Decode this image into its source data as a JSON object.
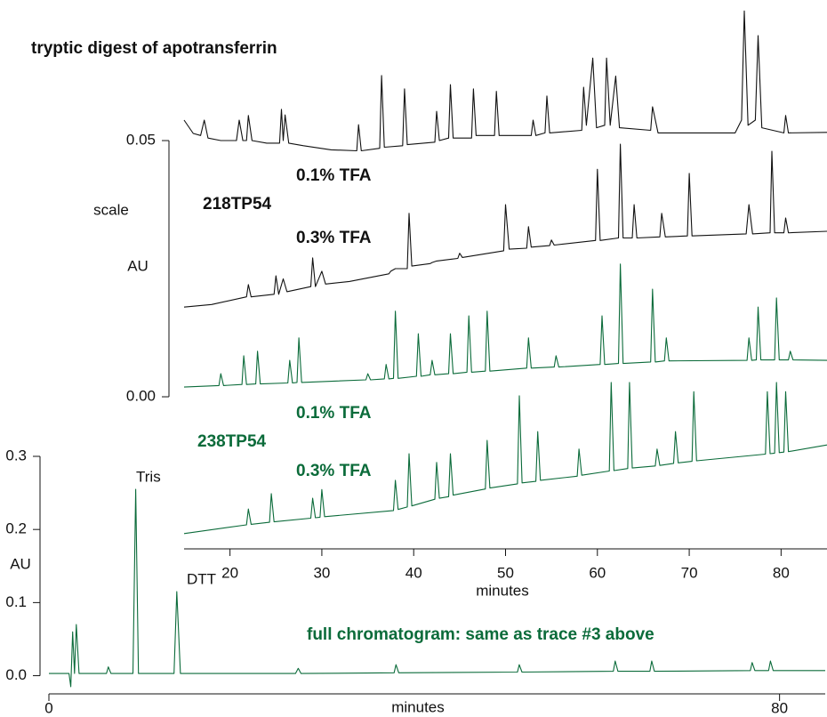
{
  "chart_data": [
    {
      "type": "line",
      "title": "tryptic digest of apotransferrin",
      "x_label": "minutes",
      "y_label": "scale",
      "y_unit": "AU",
      "xlim": [
        15,
        85
      ],
      "xticks": [
        20,
        30,
        40,
        50,
        60,
        70,
        80
      ],
      "ylim": [
        -0.0276,
        0.0757
      ],
      "yticks": [
        {
          "value": 0,
          "label": "0.00"
        },
        {
          "value": 0.05,
          "label": "0.05"
        }
      ],
      "annotations": [
        {
          "text": "0.1% TFA",
          "color": "#111111"
        },
        {
          "text": "218TP54",
          "color": "#111111"
        },
        {
          "text": "0.3% TFA",
          "color": "#111111"
        },
        {
          "text": "0.1% TFA",
          "color": "#0b6b3a"
        },
        {
          "text": "238TP54",
          "color": "#0b6b3a"
        },
        {
          "text": "0.3% TFA",
          "color": "#0b6b3a"
        }
      ],
      "series": [
        {
          "color": "#111111",
          "x": [
            15,
            16,
            16.8,
            17.2,
            17.6,
            19,
            20.7,
            21,
            21.4,
            21.8,
            22,
            22.4,
            24,
            25.4,
            25.6,
            25.8,
            26,
            26.4,
            28,
            31,
            33.8,
            34,
            34.3,
            36.3,
            36.5,
            36.8,
            38.8,
            39,
            39.3,
            42.3,
            42.5,
            42.8,
            43.8,
            44,
            44.3,
            46.3,
            46.5,
            46.8,
            48.8,
            49,
            49.3,
            52.8,
            53,
            53.3,
            54.3,
            54.5,
            54.8,
            58.3,
            58.5,
            58.8,
            59.5,
            59.9,
            60.8,
            61,
            61.4,
            62,
            62.4,
            65.8,
            66,
            66.6,
            70,
            75,
            75.7,
            76,
            76.4,
            77.2,
            77.5,
            77.9,
            80.3,
            80.5,
            80.8,
            85
          ],
          "values": [
            0.054,
            0.0514,
            0.051,
            0.054,
            0.0505,
            0.05,
            0.05,
            0.054,
            0.05,
            0.05,
            0.0549,
            0.05,
            0.0495,
            0.0495,
            0.0561,
            0.05,
            0.055,
            0.0495,
            0.049,
            0.0482,
            0.048,
            0.0531,
            0.048,
            0.0485,
            0.0627,
            0.0487,
            0.049,
            0.0601,
            0.0492,
            0.0497,
            0.0557,
            0.05,
            0.0505,
            0.0609,
            0.0505,
            0.0505,
            0.0601,
            0.051,
            0.051,
            0.0596,
            0.051,
            0.051,
            0.054,
            0.051,
            0.0515,
            0.0587,
            0.0515,
            0.052,
            0.0604,
            0.053,
            0.0661,
            0.0525,
            0.053,
            0.0661,
            0.053,
            0.0626,
            0.0525,
            0.052,
            0.0566,
            0.0515,
            0.0515,
            0.0515,
            0.054,
            0.0753,
            0.053,
            0.054,
            0.0705,
            0.0525,
            0.0515,
            0.0549,
            0.0515,
            0.0516
          ]
        },
        {
          "color": "#111111",
          "x": [
            15,
            18,
            21.8,
            22,
            22.3,
            24.8,
            25,
            25.3,
            25.8,
            26.2,
            28.8,
            29,
            29.3,
            30,
            30.4,
            33,
            37.3,
            37.5,
            38,
            39.3,
            39.5,
            39.8,
            41.8,
            42,
            42.5,
            44.8,
            45,
            45.3,
            49.8,
            50,
            50.4,
            52.3,
            52.5,
            52.8,
            54.8,
            55,
            55.3,
            59.8,
            60,
            60.3,
            62.3,
            62.5,
            62.8,
            63.8,
            64,
            64.3,
            66.8,
            67,
            67.4,
            69.8,
            70,
            70.3,
            76.2,
            76.5,
            76.9,
            78.8,
            79,
            79.3,
            80.3,
            80.5,
            80.8,
            85
          ],
          "values": [
            0.0175,
            0.018,
            0.0195,
            0.0219,
            0.0195,
            0.02,
            0.0236,
            0.02,
            0.023,
            0.0205,
            0.0215,
            0.0271,
            0.0215,
            0.0245,
            0.022,
            0.0225,
            0.024,
            0.0245,
            0.025,
            0.025,
            0.0358,
            0.0255,
            0.026,
            0.0262,
            0.0265,
            0.027,
            0.028,
            0.0272,
            0.0285,
            0.0375,
            0.0288,
            0.029,
            0.0332,
            0.0292,
            0.0295,
            0.0306,
            0.0296,
            0.0305,
            0.0444,
            0.0305,
            0.031,
            0.0493,
            0.031,
            0.031,
            0.0375,
            0.031,
            0.0312,
            0.0358,
            0.0312,
            0.0314,
            0.0436,
            0.0314,
            0.0318,
            0.0375,
            0.0318,
            0.032,
            0.0479,
            0.032,
            0.032,
            0.0349,
            0.032,
            0.0323
          ]
        },
        {
          "color": "#0b6b3a",
          "x": [
            15,
            18.8,
            19,
            19.3,
            21.3,
            21.5,
            21.8,
            22.8,
            23,
            23.3,
            26.3,
            26.5,
            26.8,
            27.3,
            27.5,
            27.8,
            34.8,
            35,
            35.3,
            36.8,
            37,
            37.3,
            37.8,
            38,
            38.3,
            40.3,
            40.5,
            40.8,
            41.8,
            42,
            42.3,
            43.8,
            44,
            44.3,
            45.8,
            46,
            46.3,
            47.8,
            48,
            48.3,
            52.3,
            52.5,
            52.8,
            55.3,
            55.5,
            55.8,
            60.3,
            60.5,
            60.8,
            62.3,
            62.5,
            62.8,
            65.8,
            66,
            66.3,
            67.3,
            67.5,
            67.8,
            76.3,
            76.5,
            76.8,
            77.3,
            77.5,
            77.8,
            79.3,
            79.5,
            79.8,
            80.8,
            81,
            81.3,
            85
          ],
          "values": [
            0.0019,
            0.0022,
            0.0045,
            0.0022,
            0.0024,
            0.008,
            0.0024,
            0.0025,
            0.0089,
            0.0025,
            0.0027,
            0.0071,
            0.0027,
            0.0028,
            0.0115,
            0.0028,
            0.0033,
            0.0045,
            0.0033,
            0.0035,
            0.0063,
            0.0035,
            0.0036,
            0.0167,
            0.0036,
            0.004,
            0.0123,
            0.004,
            0.0043,
            0.0071,
            0.0043,
            0.0045,
            0.0123,
            0.0045,
            0.0048,
            0.0158,
            0.0048,
            0.005,
            0.0167,
            0.005,
            0.0056,
            0.0115,
            0.0056,
            0.0058,
            0.008,
            0.0058,
            0.0063,
            0.0158,
            0.0063,
            0.0065,
            0.0259,
            0.0065,
            0.0068,
            0.021,
            0.0068,
            0.007,
            0.0115,
            0.007,
            0.0071,
            0.0115,
            0.0071,
            0.0072,
            0.0175,
            0.0072,
            0.0072,
            0.0193,
            0.0072,
            0.0072,
            0.0089,
            0.0072,
            0.0071
          ]
        },
        {
          "color": "#0b6b3a",
          "x": [
            15,
            21.8,
            22,
            22.3,
            24.3,
            24.5,
            24.8,
            28.8,
            29,
            29.3,
            29.8,
            30,
            30.3,
            37.8,
            38,
            38.3,
            39.3,
            39.5,
            39.8,
            42.3,
            42.5,
            42.8,
            43.8,
            44,
            44.3,
            47.8,
            48,
            48.3,
            51.3,
            51.5,
            51.8,
            53.3,
            53.5,
            53.8,
            57.8,
            58,
            58.3,
            61.3,
            61.5,
            61.8,
            63.3,
            63.5,
            63.8,
            66.3,
            66.5,
            66.8,
            68.3,
            68.5,
            68.8,
            70.3,
            70.5,
            70.8,
            78.3,
            78.5,
            78.8,
            79.3,
            79.5,
            79.8,
            80.3,
            80.5,
            80.8,
            85
          ],
          "values": [
            -0.0267,
            -0.025,
            -0.0219,
            -0.0249,
            -0.0245,
            -0.0189,
            -0.0244,
            -0.0237,
            -0.0198,
            -0.0236,
            -0.0235,
            -0.0181,
            -0.0234,
            -0.0222,
            -0.0163,
            -0.022,
            -0.0215,
            -0.0111,
            -0.0213,
            -0.02,
            -0.0128,
            -0.0198,
            -0.0195,
            -0.0111,
            -0.0192,
            -0.018,
            -0.0085,
            -0.0178,
            -0.017,
            0.0002,
            -0.0168,
            -0.0165,
            -0.0068,
            -0.0163,
            -0.0155,
            -0.0102,
            -0.0153,
            -0.0145,
            0.0028,
            -0.0144,
            -0.014,
            0.0028,
            -0.0139,
            -0.0135,
            -0.0102,
            -0.0134,
            -0.013,
            -0.0068,
            -0.0129,
            -0.0126,
            0.001,
            -0.0125,
            -0.0112,
            0.001,
            -0.0111,
            -0.011,
            0.0028,
            -0.0109,
            -0.0108,
            0.001,
            -0.0107,
            -0.0094
          ]
        }
      ]
    },
    {
      "type": "line",
      "x_label": "minutes",
      "y_label": "AU",
      "xlim": [
        0,
        85
      ],
      "xticks": [
        0,
        80
      ],
      "ylim": [
        -0.02,
        0.3
      ],
      "yticks": [
        {
          "value": 0,
          "label": "0.0"
        },
        0.1,
        0.2,
        0.3
      ],
      "annotations": [
        {
          "text": "Tris",
          "color": "#111111"
        },
        {
          "text": "DTT",
          "color": "#111111"
        },
        {
          "text": "full chromatogram: same as trace #3 above",
          "color": "#0b6b3a"
        }
      ],
      "series": [
        {
          "color": "#0b6b3a",
          "x": [
            0,
            2.2,
            2.4,
            2.6,
            2.8,
            3.0,
            3.3,
            6.3,
            6.5,
            6.8,
            9.2,
            9.5,
            9.8,
            13.7,
            14,
            14.4,
            27,
            27.3,
            27.6,
            37.8,
            38,
            38.3,
            51.3,
            51.5,
            51.8,
            61.8,
            62,
            62.3,
            65.8,
            66,
            66.3,
            76.8,
            77,
            77.3,
            78.8,
            79,
            79.3,
            85
          ],
          "values": [
            0.003,
            0.003,
            -0.015,
            0.06,
            0.003,
            0.07,
            0.003,
            0.003,
            0.012,
            0.003,
            0.003,
            0.255,
            0.003,
            0.003,
            0.115,
            0.003,
            0.003,
            0.01,
            0.003,
            0.004,
            0.015,
            0.004,
            0.005,
            0.015,
            0.005,
            0.006,
            0.02,
            0.006,
            0.006,
            0.02,
            0.006,
            0.007,
            0.018,
            0.007,
            0.007,
            0.02,
            0.007,
            0.007
          ]
        }
      ]
    }
  ]
}
